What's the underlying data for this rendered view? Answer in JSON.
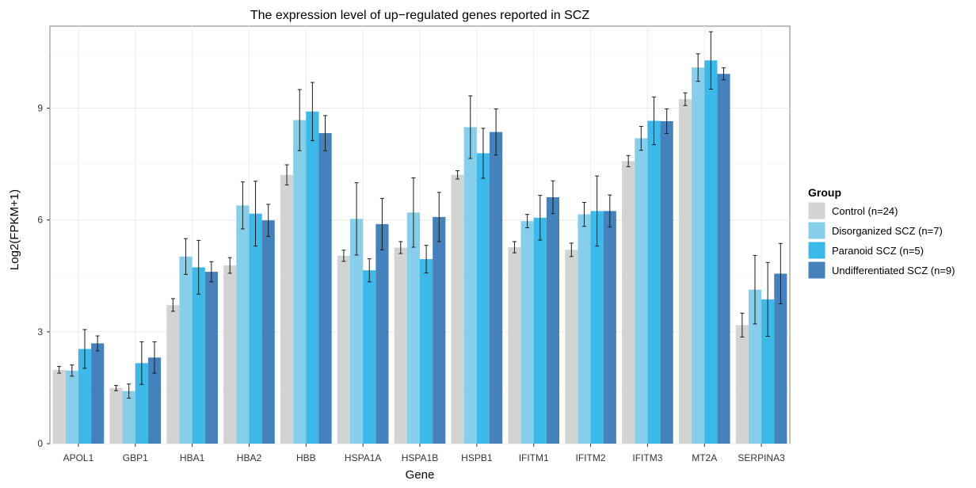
{
  "chart_data": {
    "type": "bar",
    "title": "The expression level of up−regulated genes reported in SCZ",
    "xlabel": "Gene",
    "ylabel": "Log2(FPKM+1)",
    "ylim": [
      0,
      11.2
    ],
    "yticks": [
      0,
      3,
      6,
      9
    ],
    "grid": true,
    "legend_position": "right",
    "legend_title": "Group",
    "categories": [
      "APOL1",
      "GBP1",
      "HBA1",
      "HBA2",
      "HBB",
      "HSPA1A",
      "HSPA1B",
      "HSPB1",
      "IFITM1",
      "IFITM2",
      "IFITM3",
      "MT2A",
      "SERPINA3"
    ],
    "series": [
      {
        "name": "Control (n=24)",
        "color": "#d3d3d3",
        "values": [
          1.98,
          1.49,
          3.72,
          4.78,
          7.21,
          5.04,
          5.26,
          7.21,
          5.27,
          5.2,
          7.58,
          9.24,
          3.18
        ],
        "errors": [
          0.09,
          0.07,
          0.17,
          0.21,
          0.27,
          0.15,
          0.16,
          0.11,
          0.15,
          0.18,
          0.15,
          0.17,
          0.32
        ]
      },
      {
        "name": "Disorganized SCZ (n=7)",
        "color": "#87ceeb",
        "values": [
          1.96,
          1.41,
          5.02,
          6.39,
          8.68,
          6.03,
          6.2,
          8.49,
          5.97,
          6.15,
          8.19,
          10.09,
          4.13
        ],
        "errors": [
          0.15,
          0.19,
          0.48,
          0.63,
          0.82,
          0.97,
          0.93,
          0.84,
          0.18,
          0.32,
          0.32,
          0.37,
          0.92
        ]
      },
      {
        "name": "Paranoid SCZ (n=5)",
        "color": "#3cb9e8",
        "values": [
          2.54,
          2.16,
          4.73,
          6.17,
          8.91,
          4.65,
          4.95,
          7.79,
          6.06,
          6.24,
          8.66,
          10.28,
          3.87
        ],
        "errors": [
          0.52,
          0.57,
          0.72,
          0.87,
          0.78,
          0.31,
          0.37,
          0.67,
          0.6,
          0.94,
          0.64,
          0.77,
          0.99
        ]
      },
      {
        "name": "Undifferentiated SCZ (n=9)",
        "color": "#4582bc",
        "values": [
          2.69,
          2.31,
          4.61,
          5.99,
          8.33,
          5.89,
          6.08,
          8.36,
          6.61,
          6.24,
          8.65,
          9.92,
          4.56
        ],
        "errors": [
          0.2,
          0.42,
          0.27,
          0.43,
          0.47,
          0.69,
          0.66,
          0.62,
          0.44,
          0.43,
          0.33,
          0.16,
          0.81
        ]
      }
    ]
  }
}
